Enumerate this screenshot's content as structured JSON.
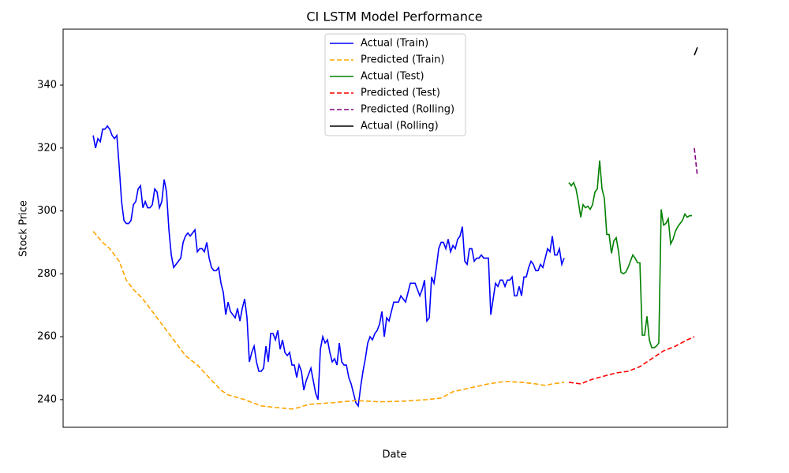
{
  "chart_data": {
    "type": "line",
    "title": "CI LSTM Model Performance",
    "x_label": "Date",
    "y_label": "Stock Price",
    "xlim": [
      -12.7,
      268
    ],
    "ylim": [
      231.2,
      357.8
    ],
    "yticks": [
      240,
      260,
      280,
      300,
      320,
      340
    ],
    "legend": "upper center",
    "series": [
      {
        "name": "Actual (Train)",
        "color": "#0000ff",
        "dashed": false,
        "x": [
          0,
          1,
          2,
          3,
          4,
          5,
          6,
          7,
          8,
          9,
          10,
          11,
          12,
          13,
          14,
          15,
          16,
          17,
          18,
          19,
          20,
          21,
          22,
          23,
          24,
          25,
          26,
          27,
          28,
          29,
          30,
          31,
          32,
          33,
          34,
          35,
          36,
          37,
          38,
          39,
          40,
          41,
          42,
          43,
          44,
          45,
          46,
          47,
          48,
          49,
          50,
          51,
          52,
          53,
          54,
          55,
          56,
          57,
          58,
          59,
          60,
          61,
          62,
          63,
          64,
          65,
          66,
          67,
          68,
          69,
          70,
          71,
          72,
          73,
          74,
          75,
          76,
          77,
          78,
          79,
          80,
          81,
          82,
          83,
          84,
          85,
          86,
          87,
          88,
          89,
          90,
          91,
          92,
          93,
          94,
          95,
          96,
          97,
          98,
          99,
          100,
          101,
          102,
          103,
          104,
          105,
          106,
          107,
          108,
          109,
          110,
          111,
          112,
          113,
          114,
          115,
          116,
          117,
          118,
          119,
          120,
          121,
          122,
          123,
          124,
          125,
          126,
          127,
          128,
          129,
          130,
          131,
          132,
          133,
          134,
          135,
          136,
          137,
          138,
          139,
          140,
          141,
          142,
          143,
          144,
          145,
          146,
          147,
          148,
          149,
          150,
          151,
          152,
          153,
          154,
          155,
          156,
          157,
          158,
          159,
          160,
          161,
          162,
          163,
          164,
          165,
          166,
          167,
          168,
          169,
          170,
          171,
          172,
          173,
          174,
          175,
          176,
          177,
          178,
          179,
          180,
          181,
          182,
          183,
          184,
          185,
          186,
          187,
          188,
          189,
          190,
          191,
          192,
          193,
          194,
          195,
          196,
          197,
          198,
          199
        ],
        "values": [
          324,
          320,
          323,
          322,
          326,
          326,
          327,
          326,
          324,
          323,
          324,
          314,
          303,
          297,
          296,
          296,
          297,
          302,
          303,
          307,
          308,
          301,
          303,
          301,
          301,
          302,
          307,
          306,
          301,
          303,
          310,
          306,
          294,
          286,
          282,
          283,
          284,
          285,
          290,
          292,
          293,
          292,
          293,
          294,
          287,
          288,
          288,
          287,
          290,
          285,
          282,
          281,
          281,
          282,
          277,
          274,
          267,
          271,
          268,
          267,
          266,
          269,
          265,
          269,
          272,
          266,
          252,
          255,
          257,
          252,
          249,
          249,
          250,
          257,
          252,
          261,
          261,
          259,
          262,
          256,
          259,
          255,
          254,
          255,
          251,
          251,
          247,
          251,
          249,
          243,
          246,
          248,
          250,
          246,
          242,
          240,
          256,
          260,
          258,
          259,
          255,
          252,
          253,
          251,
          258,
          252,
          251,
          251,
          247,
          245,
          242,
          239,
          238,
          244,
          249,
          253,
          258,
          260,
          259,
          261,
          262,
          264,
          268,
          260,
          266,
          265,
          268,
          271,
          271,
          271,
          273,
          272,
          271,
          274,
          277,
          277,
          277,
          275,
          273,
          275,
          278,
          265,
          266,
          279,
          277,
          282,
          288,
          290,
          290,
          288,
          291,
          287,
          289,
          288,
          291,
          292,
          295,
          284,
          283,
          288,
          288,
          284,
          285,
          285,
          286,
          285,
          285,
          285,
          267,
          272,
          277,
          276,
          278,
          278,
          276,
          278,
          278,
          279,
          273,
          273,
          276,
          273,
          279,
          279,
          282,
          284,
          283,
          281,
          281,
          283,
          282,
          285,
          288,
          287,
          292,
          286,
          286,
          288,
          283,
          285
        ]
      },
      {
        "name": "Predicted (Train)",
        "color": "#ffa500",
        "dashed": true,
        "x": [
          0,
          4,
          7,
          11,
          14,
          17,
          21,
          27,
          34,
          39,
          44,
          49,
          54,
          57,
          64,
          71,
          77,
          84,
          87,
          91,
          101,
          111,
          121,
          131,
          141,
          147,
          152,
          161,
          167,
          174,
          181,
          187,
          191,
          194,
          199
        ],
        "values": [
          293.5,
          290,
          288,
          284,
          278,
          275,
          272,
          266,
          259,
          254,
          251,
          247,
          243,
          241.5,
          240,
          238,
          237.5,
          237,
          237.5,
          238.5,
          239,
          239.7,
          239.3,
          239.5,
          240,
          240.5,
          242.5,
          244,
          245,
          245.8,
          245.5,
          245,
          244.5,
          245,
          245.5
        ]
      },
      {
        "name": "Actual (Test)",
        "color": "#008000",
        "dashed": false,
        "x": [
          201,
          202,
          203,
          204,
          205,
          206,
          207,
          208,
          209,
          210,
          211,
          212,
          213,
          214,
          215,
          216,
          217,
          218,
          219,
          220,
          221,
          222,
          223,
          224,
          225,
          226,
          227,
          228,
          229,
          230,
          231,
          232,
          233,
          234,
          235,
          236,
          237,
          238,
          239,
          240,
          241,
          242,
          243,
          244,
          245,
          246,
          247,
          248,
          249,
          250,
          251,
          252,
          253
        ],
        "values": [
          309,
          308,
          309,
          307,
          303,
          298,
          302,
          301,
          301.5,
          300.5,
          302,
          306,
          307,
          316,
          307,
          304,
          292.5,
          292.5,
          286.5,
          290.5,
          291.5,
          287,
          280.5,
          280,
          280.5,
          282,
          284,
          286,
          285,
          283.5,
          283.5,
          260.5,
          260.5,
          266.5,
          259,
          256.5,
          256.5,
          257,
          258,
          300.5,
          295.5,
          296,
          297.5,
          289.5,
          291,
          293.5,
          295,
          296,
          297,
          299,
          298,
          298.5,
          298.5
        ]
      },
      {
        "name": "Predicted (Test)",
        "color": "#ff0000",
        "dashed": true,
        "x": [
          201,
          206,
          211,
          216,
          221,
          226,
          231,
          236,
          241,
          246,
          251,
          254
        ],
        "values": [
          245.5,
          245,
          246.5,
          247.5,
          248.5,
          249,
          250.5,
          253,
          255.5,
          257,
          259,
          260
        ]
      },
      {
        "name": "Predicted (Rolling)",
        "color": "#800080",
        "dashed": true,
        "x": [
          254,
          255.3
        ],
        "values": [
          320,
          311
        ]
      },
      {
        "name": "Actual (Rolling)",
        "color": "#000000",
        "dashed": false,
        "x": [
          254,
          255.3
        ],
        "values": [
          349.5,
          352
        ]
      }
    ]
  }
}
